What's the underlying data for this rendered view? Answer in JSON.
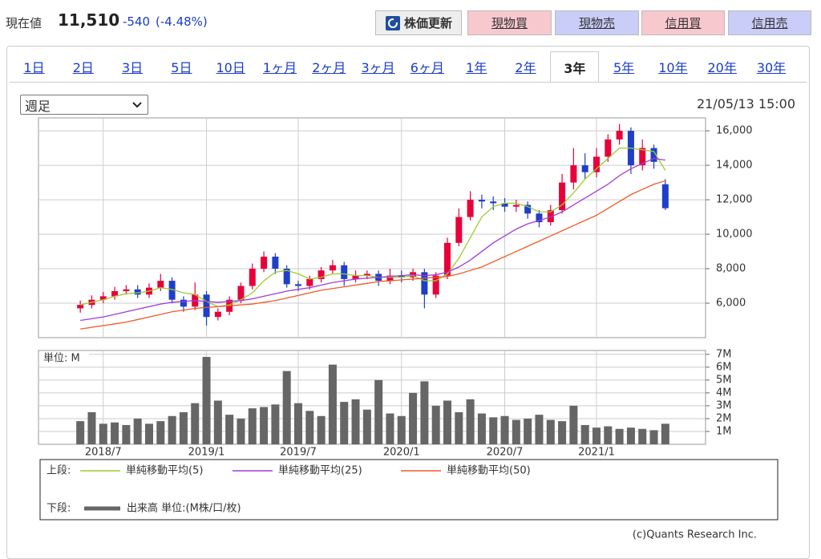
{
  "header": {
    "label": "現在値",
    "price": "11,510",
    "change": "-540",
    "change_pct": "(-4.48%)",
    "buttons": [
      "株価更新",
      "現物買",
      "現物売",
      "信用買",
      "信用売"
    ]
  },
  "tabs": [
    "1日",
    "2日",
    "3日",
    "5日",
    "10日",
    "1ヶ月",
    "2ヶ月",
    "3ヶ月",
    "6ヶ月",
    "1年",
    "2年",
    "3年",
    "5年",
    "10年",
    "20年",
    "30年"
  ],
  "active_tab": "3年",
  "period_select": "週足",
  "timestamp": "21/05/13 15:00",
  "copyright": "(c)Quants Research Inc.",
  "chart_data": {
    "type": "candlestick",
    "grid": true,
    "up_color": "#e8003a",
    "down_color": "#1f3fc8",
    "categories": [
      null,
      null,
      "2018/7",
      null,
      null,
      null,
      null,
      null,
      null,
      null,
      null,
      "2019/1",
      null,
      null,
      null,
      null,
      null,
      null,
      null,
      "2019/7",
      null,
      null,
      null,
      null,
      null,
      null,
      null,
      null,
      "2020/1",
      null,
      null,
      null,
      null,
      null,
      null,
      null,
      null,
      "2020/7",
      null,
      null,
      null,
      null,
      null,
      null,
      null,
      "2021/1",
      null,
      null,
      null,
      null,
      null,
      null
    ],
    "open": [
      5700,
      5900,
      6200,
      6400,
      6700,
      6800,
      6500,
      6900,
      7300,
      6200,
      5800,
      6500,
      5200,
      5500,
      6200,
      7000,
      8000,
      8700,
      8000,
      7100,
      7000,
      7400,
      7900,
      8200,
      7400,
      7600,
      7700,
      7300,
      7600,
      7500,
      7800,
      6500,
      7600,
      9500,
      11000,
      12000,
      11900,
      11800,
      11600,
      11700,
      11200,
      10700,
      11400,
      13000,
      14000,
      13600,
      14500,
      15500,
      16000,
      14000,
      15000,
      12900
    ],
    "high": [
      6150,
      6450,
      6650,
      6950,
      7050,
      7050,
      7150,
      7700,
      7500,
      6400,
      7200,
      6700,
      5700,
      6400,
      7200,
      8300,
      9000,
      8900,
      8200,
      7300,
      7600,
      8100,
      8500,
      8400,
      7900,
      7900,
      7900,
      8000,
      7900,
      8000,
      8000,
      7800,
      9800,
      11500,
      12500,
      12300,
      12200,
      12100,
      12000,
      11900,
      11400,
      11700,
      13500,
      15000,
      14700,
      15000,
      15800,
      16400,
      16200,
      15500,
      15200,
      13200
    ],
    "low": [
      5450,
      5700,
      6000,
      6200,
      6500,
      6300,
      6300,
      6700,
      6000,
      5500,
      5600,
      4700,
      5000,
      5300,
      6000,
      6800,
      7800,
      7700,
      6900,
      6700,
      6800,
      7200,
      7700,
      7000,
      7200,
      7400,
      7000,
      7100,
      7200,
      7300,
      5700,
      6300,
      7400,
      9300,
      10800,
      11500,
      11400,
      11300,
      11300,
      10900,
      10400,
      10500,
      11200,
      12600,
      13200,
      13300,
      14200,
      15200,
      13500,
      13700,
      13800,
      11400
    ],
    "close": [
      5900,
      6200,
      6400,
      6700,
      6800,
      6500,
      6900,
      7300,
      6200,
      5800,
      6500,
      5200,
      5500,
      6200,
      7000,
      8000,
      8700,
      8000,
      7100,
      7000,
      7400,
      7900,
      8200,
      7400,
      7600,
      7700,
      7300,
      7600,
      7500,
      7800,
      6500,
      7600,
      9500,
      11000,
      12000,
      11900,
      11800,
      11600,
      11700,
      11200,
      10700,
      11400,
      13000,
      14000,
      13600,
      14500,
      15500,
      16000,
      14000,
      15000,
      14200,
      11510
    ],
    "ylim": [
      4000,
      16750
    ],
    "yticks": [
      {
        "value": 6000,
        "label": "6,000"
      },
      {
        "value": 8000,
        "label": "8,000"
      },
      {
        "value": 10000,
        "label": "10,000"
      },
      {
        "value": 12000,
        "label": "12,000"
      },
      {
        "value": 14000,
        "label": "14,000"
      },
      {
        "value": 16000,
        "label": "16,000"
      }
    ],
    "legend_upper": "上段:",
    "legend_lower": "下段:",
    "series": [
      {
        "name": "単純移動平均(5)",
        "color": "#9acd32",
        "values": [
          5900,
          6050,
          6200,
          6400,
          6550,
          6600,
          6700,
          6900,
          6800,
          6600,
          6500,
          6100,
          5800,
          5900,
          6200,
          6600,
          7300,
          7800,
          7900,
          7700,
          7400,
          7500,
          7700,
          7700,
          7600,
          7600,
          7500,
          7500,
          7500,
          7600,
          7300,
          7300,
          7700,
          8600,
          9800,
          11000,
          11600,
          11800,
          11800,
          11600,
          11300,
          11300,
          11700,
          12400,
          13200,
          13800,
          14400,
          15000,
          15000,
          14900,
          14800,
          13700
        ]
      },
      {
        "name": "単純移動平均(25)",
        "color": "#a23cd6",
        "values": [
          5000,
          5100,
          5200,
          5350,
          5500,
          5650,
          5800,
          5950,
          6050,
          6100,
          6150,
          6100,
          6050,
          6100,
          6150,
          6250,
          6400,
          6550,
          6700,
          6800,
          6900,
          7050,
          7200,
          7300,
          7400,
          7450,
          7500,
          7550,
          7600,
          7650,
          7600,
          7650,
          7800,
          8100,
          8500,
          9000,
          9500,
          9900,
          10300,
          10600,
          10800,
          11000,
          11300,
          11700,
          12100,
          12500,
          12900,
          13400,
          13800,
          14100,
          14400,
          14300
        ]
      },
      {
        "name": "単純移動平均(50)",
        "color": "#f05a28",
        "values": [
          4500,
          4600,
          4700,
          4800,
          4900,
          5050,
          5200,
          5350,
          5500,
          5600,
          5700,
          5750,
          5800,
          5850,
          5900,
          5950,
          6050,
          6150,
          6300,
          6450,
          6600,
          6750,
          6850,
          6950,
          7050,
          7150,
          7250,
          7300,
          7350,
          7400,
          7450,
          7500,
          7550,
          7700,
          7900,
          8100,
          8400,
          8700,
          9000,
          9300,
          9600,
          9900,
          10200,
          10500,
          10800,
          11100,
          11500,
          11900,
          12300,
          12600,
          12900,
          13100
        ]
      }
    ],
    "volume": {
      "name": "出来高 単位:(M株/口/枚)",
      "unit_label": "単位: M",
      "color": "#666666",
      "values": [
        1.8,
        2.5,
        1.6,
        1.7,
        1.5,
        2.0,
        1.6,
        1.8,
        2.2,
        2.5,
        3.2,
        6.8,
        3.4,
        2.3,
        2.0,
        2.8,
        2.9,
        3.1,
        5.7,
        3.2,
        2.6,
        2.2,
        6.2,
        3.3,
        3.5,
        2.7,
        5.0,
        2.4,
        2.2,
        4.0,
        4.9,
        3.0,
        3.4,
        2.5,
        3.5,
        2.4,
        2.1,
        2.2,
        1.9,
        2.0,
        2.3,
        1.9,
        1.8,
        3.0,
        1.5,
        1.3,
        1.4,
        1.2,
        1.3,
        1.2,
        1.1,
        1.6
      ],
      "ylim": [
        0,
        7.3
      ],
      "yticks": [
        {
          "value": 1,
          "label": "1M"
        },
        {
          "value": 2,
          "label": "2M"
        },
        {
          "value": 3,
          "label": "3M"
        },
        {
          "value": 4,
          "label": "4M"
        },
        {
          "value": 5,
          "label": "5M"
        },
        {
          "value": 6,
          "label": "6M"
        },
        {
          "value": 7,
          "label": "7M"
        }
      ]
    }
  }
}
